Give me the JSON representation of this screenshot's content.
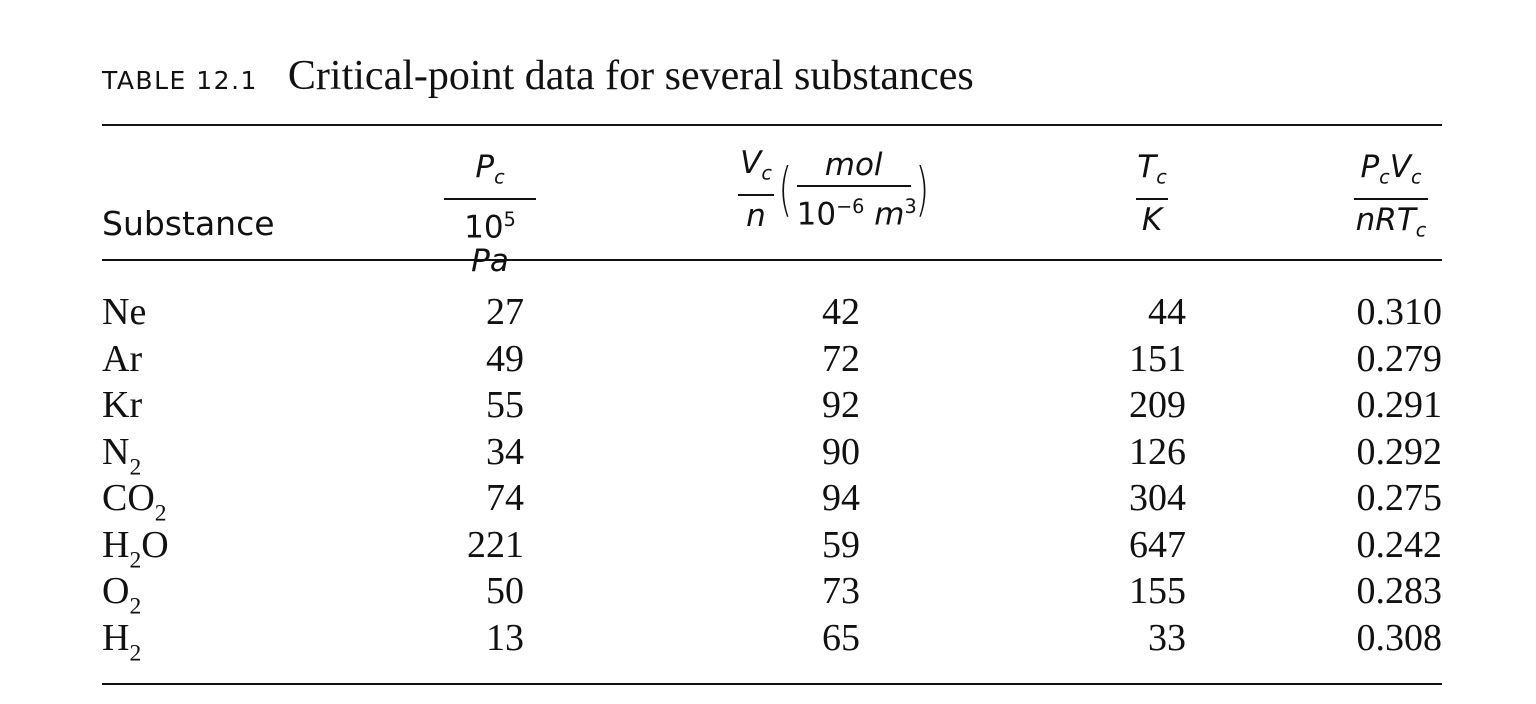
{
  "caption": {
    "label": "TABLE 12.1",
    "title": "Critical-point data for several substances"
  },
  "headers": {
    "substance": "Substance",
    "pc": {
      "num_symbol": "P",
      "num_sub": "c",
      "den_base": "10",
      "den_sup": "5",
      "den_unit": "Pa"
    },
    "vc": {
      "num_symbol": "V",
      "num_sub": "c",
      "den": "n",
      "unit_num": "mol",
      "unit_den_base": "10",
      "unit_den_sup": "−6",
      "unit_den_unit": "m",
      "unit_den_unit_sup": "3"
    },
    "tc": {
      "num_symbol": "T",
      "num_sub": "c",
      "den": "K"
    },
    "ratio": {
      "num_p": "P",
      "num_p_sub": "c",
      "num_v": "V",
      "num_v_sub": "c",
      "den_nr": "nRT",
      "den_sub": "c"
    }
  },
  "rows": [
    {
      "formula": "Ne",
      "sub": "",
      "rest": "",
      "pc": "27",
      "vc": "42",
      "tc": "44",
      "ratio": "0.310"
    },
    {
      "formula": "Ar",
      "sub": "",
      "rest": "",
      "pc": "49",
      "vc": "72",
      "tc": "151",
      "ratio": "0.279"
    },
    {
      "formula": "Kr",
      "sub": "",
      "rest": "",
      "pc": "55",
      "vc": "92",
      "tc": "209",
      "ratio": "0.291"
    },
    {
      "formula": "N",
      "sub": "2",
      "rest": "",
      "pc": "34",
      "vc": "90",
      "tc": "126",
      "ratio": "0.292"
    },
    {
      "formula": "CO",
      "sub": "2",
      "rest": "",
      "pc": "74",
      "vc": "94",
      "tc": "304",
      "ratio": "0.275"
    },
    {
      "formula": "H",
      "sub": "2",
      "rest": "O",
      "pc": "221",
      "vc": "59",
      "tc": "647",
      "ratio": "0.242"
    },
    {
      "formula": "O",
      "sub": "2",
      "rest": "",
      "pc": "50",
      "vc": "73",
      "tc": "155",
      "ratio": "0.283"
    },
    {
      "formula": "H",
      "sub": "2",
      "rest": "",
      "pc": "13",
      "vc": "65",
      "tc": "33",
      "ratio": "0.308"
    }
  ]
}
